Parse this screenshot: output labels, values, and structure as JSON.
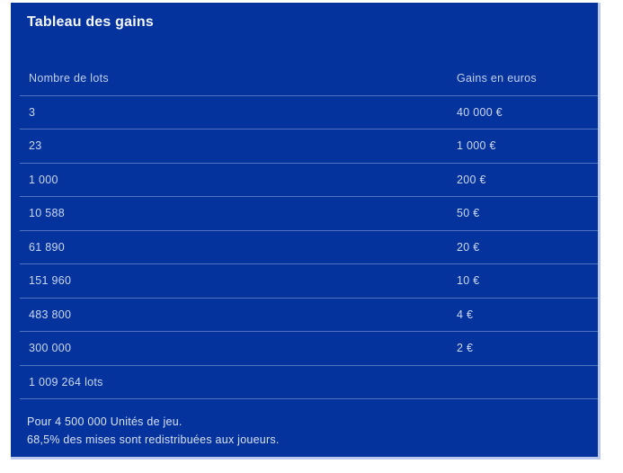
{
  "panel": {
    "title": "Tableau des gains",
    "table": {
      "columns": {
        "lots": "Nombre de lots",
        "gains": "Gains en euros"
      },
      "rows": [
        {
          "lots": "3",
          "gain": "40 000 €"
        },
        {
          "lots": "23",
          "gain": "1 000 €"
        },
        {
          "lots": "1 000",
          "gain": "200 €"
        },
        {
          "lots": "10 588",
          "gain": "50 €"
        },
        {
          "lots": "61 890",
          "gain": "20 €"
        },
        {
          "lots": "151 960",
          "gain": "10 €"
        },
        {
          "lots": "483 800",
          "gain": "4 €"
        },
        {
          "lots": "300 000",
          "gain": "2 €"
        },
        {
          "lots": "1 009 264 lots",
          "gain": ""
        }
      ]
    },
    "footer": {
      "line1": "Pour 4 500 000 Unités de jeu.",
      "line2": "68,5% des mises sont redistribuées aux joueurs."
    },
    "colors": {
      "panel_background": "#04339e",
      "panel_edge": "#b9c8ec",
      "title_text": "#f4f7ff",
      "row_text": "#ccd7f3",
      "separator": "rgba(214,225,250,0.38)"
    }
  }
}
